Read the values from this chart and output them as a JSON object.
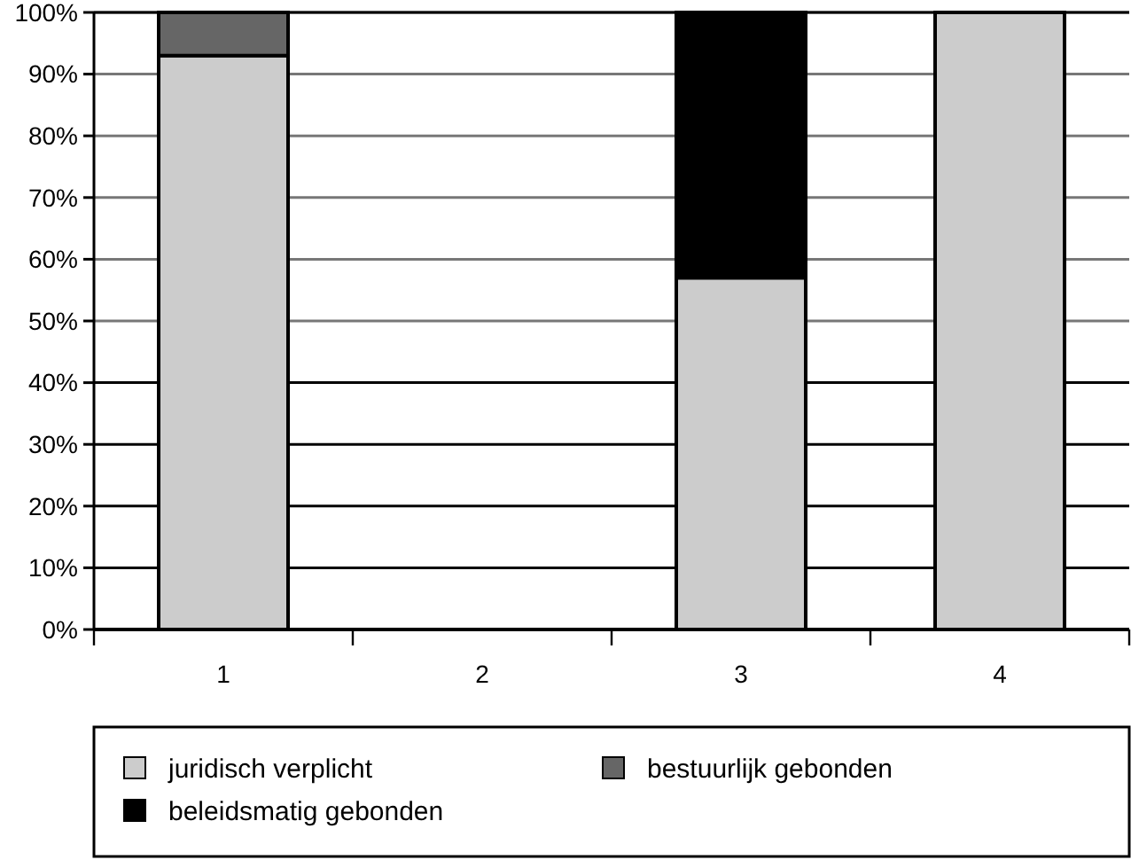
{
  "chart_data": {
    "type": "bar",
    "stacked": true,
    "categories": [
      "1",
      "2",
      "3",
      "4"
    ],
    "series": [
      {
        "name": "juridisch verplicht",
        "color": "#cccccc",
        "values": [
          93,
          null,
          57,
          100
        ]
      },
      {
        "name": "bestuurlijk gebonden",
        "color": "#666666",
        "values": [
          7,
          null,
          null,
          null
        ]
      },
      {
        "name": "beleidsmatig gebonden",
        "color": "#000000",
        "values": [
          null,
          null,
          43,
          null
        ]
      }
    ],
    "ylim": [
      0,
      100
    ],
    "yticks": [
      {
        "value": 0,
        "label": "0%"
      },
      {
        "value": 10,
        "label": "10%"
      },
      {
        "value": 20,
        "label": "20%"
      },
      {
        "value": 30,
        "label": "30%"
      },
      {
        "value": 40,
        "label": "40%"
      },
      {
        "value": 50,
        "label": "50%"
      },
      {
        "value": 60,
        "label": "60%"
      },
      {
        "value": 70,
        "label": "70%"
      },
      {
        "value": 80,
        "label": "80%"
      },
      {
        "value": 90,
        "label": "90%"
      },
      {
        "value": 100,
        "label": "100%"
      }
    ],
    "grid": "y",
    "legend": "bottom"
  }
}
